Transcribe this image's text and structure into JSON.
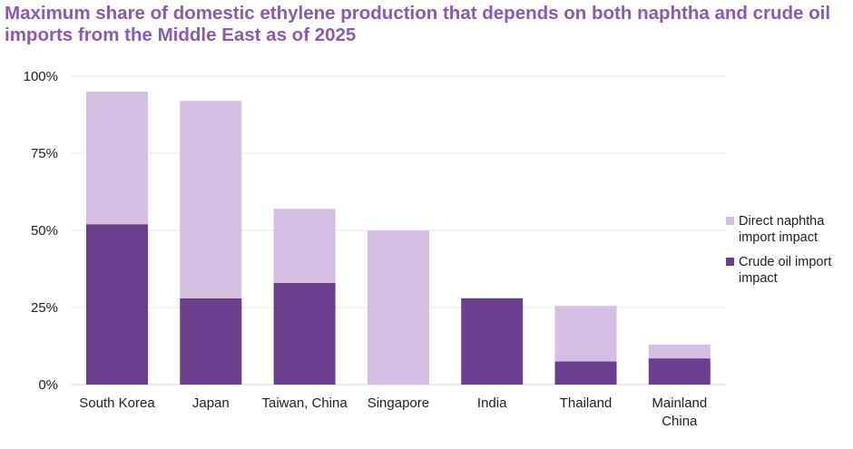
{
  "chart_data": {
    "type": "bar",
    "stacked": true,
    "title": "Maximum share of domestic ethylene production that depends on both naphtha and crude oil imports from the Middle East as of 2025",
    "categories": [
      "South Korea",
      "Japan",
      "Taiwan, China",
      "Singapore",
      "India",
      "Thailand",
      "Mainland China"
    ],
    "series": [
      {
        "name": "Crude oil import impact",
        "color": "#6a3f8e",
        "values": [
          52,
          28,
          33,
          0,
          28,
          7.5,
          8.5
        ]
      },
      {
        "name": "Direct naphtha import impact",
        "color": "#d4bfe3",
        "values": [
          43,
          64,
          24,
          50,
          0,
          18,
          4.5
        ]
      }
    ],
    "yticks": [
      "0%",
      "25%",
      "50%",
      "75%",
      "100%"
    ],
    "ylim": [
      0,
      100
    ],
    "xlabel": "",
    "ylabel": "",
    "grid": true,
    "legend_position": "right",
    "legend": [
      "Direct naphtha import impact",
      "Crude oil import impact"
    ]
  }
}
